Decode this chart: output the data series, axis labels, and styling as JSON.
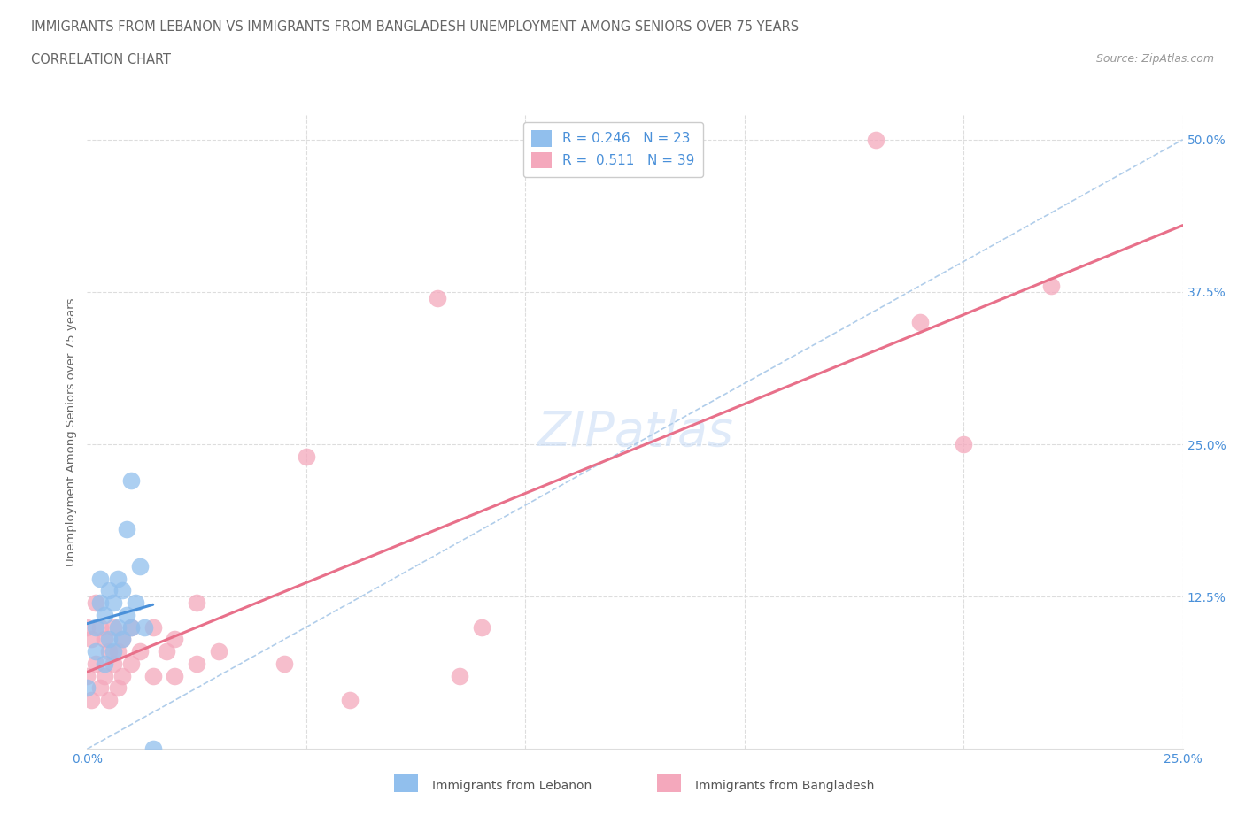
{
  "title_line1": "IMMIGRANTS FROM LEBANON VS IMMIGRANTS FROM BANGLADESH UNEMPLOYMENT AMONG SENIORS OVER 75 YEARS",
  "title_line2": "CORRELATION CHART",
  "source_text": "Source: ZipAtlas.com",
  "ylabel": "Unemployment Among Seniors over 75 years",
  "watermark": "ZIPatlas",
  "xlim": [
    0.0,
    0.25
  ],
  "ylim": [
    0.0,
    0.52
  ],
  "lebanon_R": 0.246,
  "lebanon_N": 23,
  "bangladesh_R": 0.511,
  "bangladesh_N": 39,
  "lebanon_color": "#91bfed",
  "bangladesh_color": "#f4a8bc",
  "lebanon_line_color": "#4a90d9",
  "bangladesh_line_color": "#e8708a",
  "diag_line_color": "#a8c8e8",
  "legend_label1": "Immigrants from Lebanon",
  "legend_label2": "Immigrants from Bangladesh",
  "lebanon_x": [
    0.0,
    0.002,
    0.002,
    0.003,
    0.003,
    0.004,
    0.004,
    0.005,
    0.005,
    0.006,
    0.006,
    0.007,
    0.007,
    0.008,
    0.008,
    0.009,
    0.009,
    0.01,
    0.01,
    0.011,
    0.012,
    0.013,
    0.015
  ],
  "lebanon_y": [
    0.05,
    0.08,
    0.1,
    0.12,
    0.14,
    0.07,
    0.11,
    0.09,
    0.13,
    0.08,
    0.12,
    0.1,
    0.14,
    0.09,
    0.13,
    0.11,
    0.18,
    0.1,
    0.22,
    0.12,
    0.15,
    0.1,
    0.0
  ],
  "bangladesh_x": [
    0.0,
    0.0,
    0.001,
    0.001,
    0.002,
    0.002,
    0.003,
    0.003,
    0.004,
    0.004,
    0.005,
    0.005,
    0.006,
    0.006,
    0.007,
    0.007,
    0.008,
    0.008,
    0.01,
    0.01,
    0.012,
    0.015,
    0.015,
    0.018,
    0.02,
    0.02,
    0.025,
    0.025,
    0.03,
    0.045,
    0.05,
    0.06,
    0.08,
    0.085,
    0.09,
    0.18,
    0.2,
    0.22,
    0.19
  ],
  "bangladesh_y": [
    0.06,
    0.1,
    0.04,
    0.09,
    0.07,
    0.12,
    0.05,
    0.1,
    0.06,
    0.09,
    0.04,
    0.08,
    0.07,
    0.1,
    0.05,
    0.08,
    0.06,
    0.09,
    0.07,
    0.1,
    0.08,
    0.06,
    0.1,
    0.08,
    0.06,
    0.09,
    0.07,
    0.12,
    0.08,
    0.07,
    0.24,
    0.04,
    0.37,
    0.06,
    0.1,
    0.5,
    0.25,
    0.38,
    0.35
  ],
  "leb_line_x": [
    0.0,
    0.015
  ],
  "bang_line_x": [
    0.0,
    0.25
  ]
}
